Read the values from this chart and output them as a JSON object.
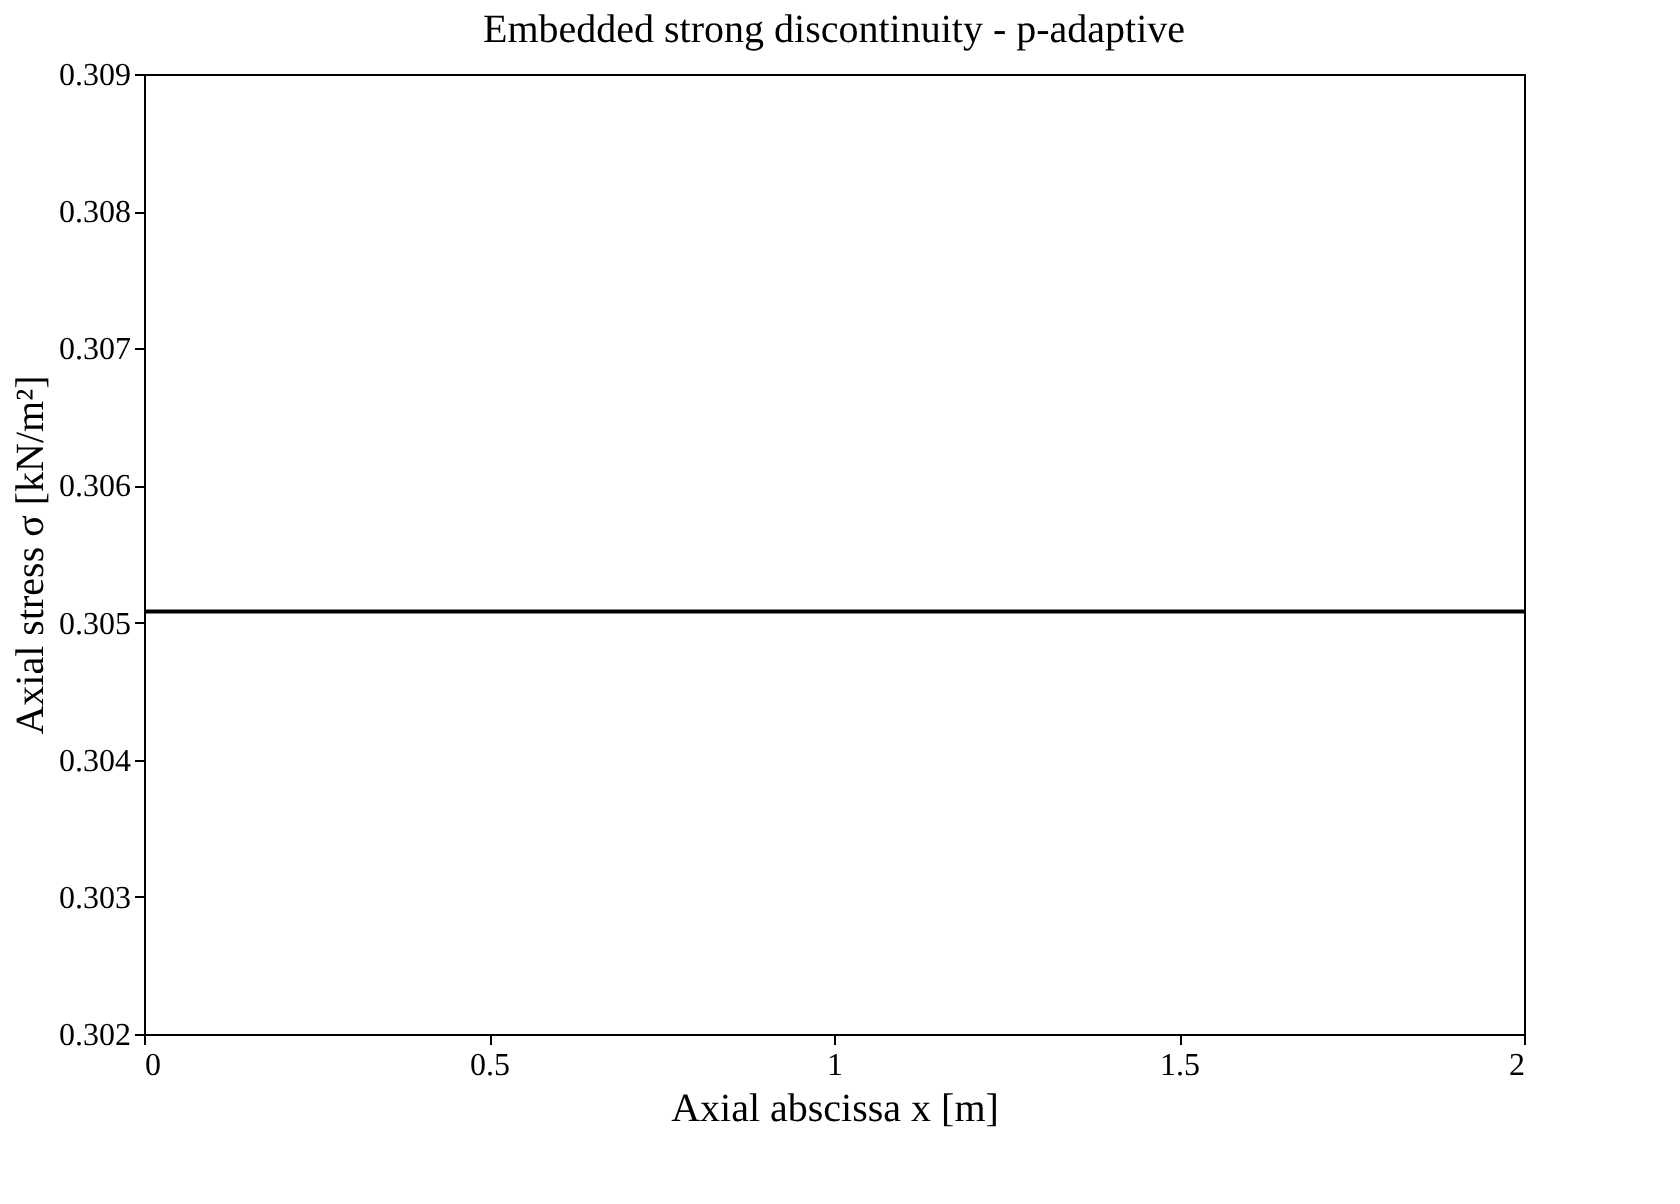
{
  "chart_data": {
    "type": "line",
    "title": "Embedded strong discontinuity - p-adaptive",
    "xlabel": "Axial abscissa x [m]",
    "ylabel": "Axial stress σ [kN/m²]",
    "x": [
      0,
      2
    ],
    "series": [
      {
        "color": "#000000",
        "values": [
          0.30508,
          0.30508
        ]
      }
    ],
    "xlim": [
      0,
      2
    ],
    "xticks": [
      0,
      0.5,
      1,
      1.5,
      2
    ],
    "ylim": [
      0.302,
      0.309
    ],
    "yticks": [
      0.302,
      0.303,
      0.304,
      0.305,
      0.306,
      0.307,
      0.308,
      0.309
    ],
    "grid": false,
    "legend": false,
    "marker": "none",
    "line_style": "solid"
  }
}
